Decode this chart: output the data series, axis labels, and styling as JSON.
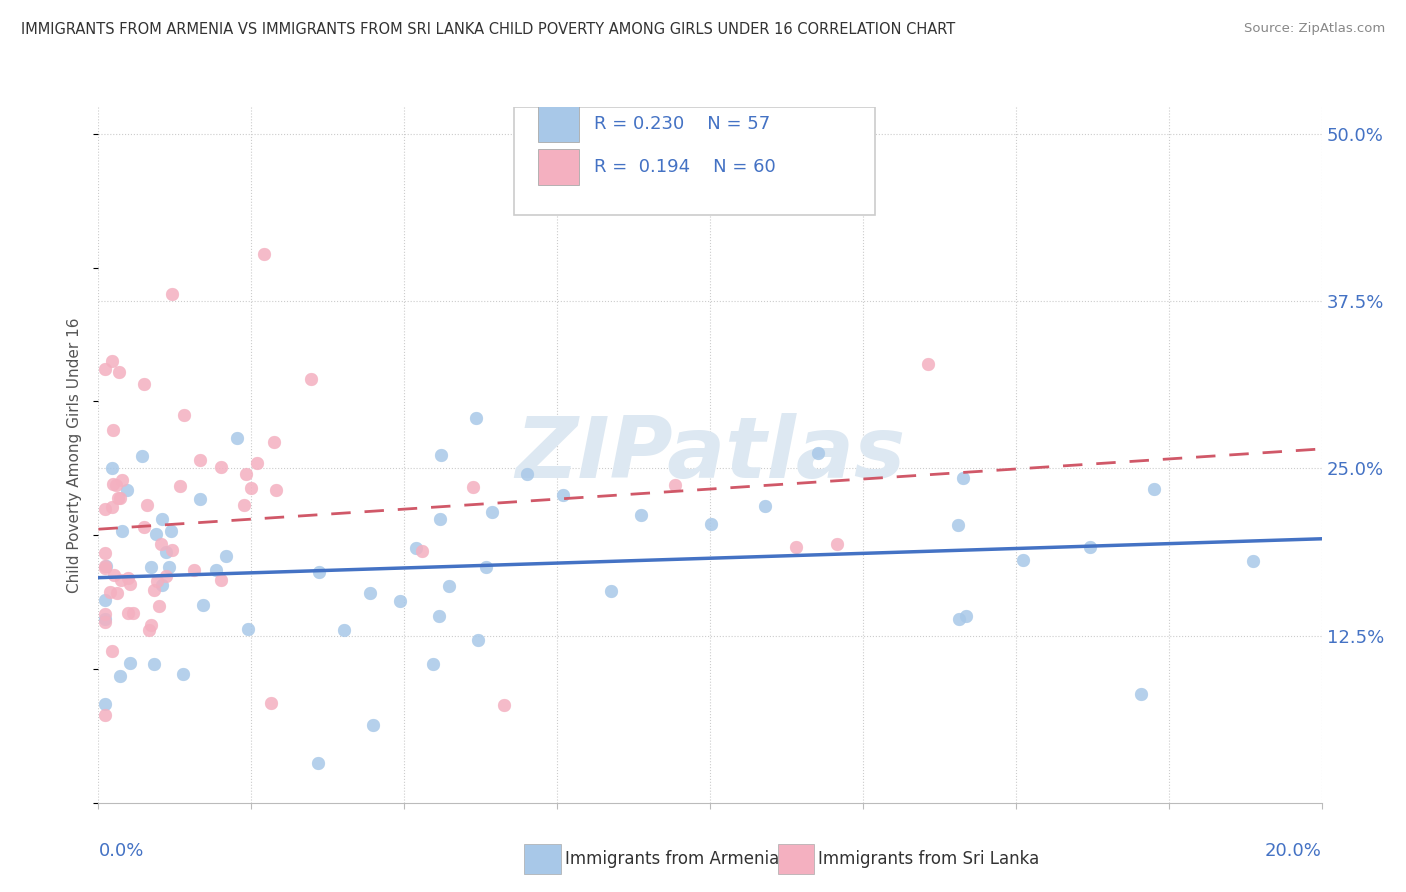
{
  "title": "IMMIGRANTS FROM ARMENIA VS IMMIGRANTS FROM SRI LANKA CHILD POVERTY AMONG GIRLS UNDER 16 CORRELATION CHART",
  "source": "Source: ZipAtlas.com",
  "ylabel": "Child Poverty Among Girls Under 16",
  "xlim": [
    0.0,
    0.2
  ],
  "ylim": [
    0.0,
    0.52
  ],
  "ytick_values": [
    0.125,
    0.25,
    0.375,
    0.5
  ],
  "ytick_labels": [
    "12.5%",
    "25.0%",
    "37.5%",
    "50.0%"
  ],
  "xtick_label_left": "0.0%",
  "xtick_label_right": "20.0%",
  "watermark": "ZIPatlas",
  "legend_armenia_r": "0.230",
  "legend_armenia_n": "57",
  "legend_srilanka_r": "0.194",
  "legend_srilanka_n": "60",
  "armenia_fill": "#a8c8e8",
  "srilanka_fill": "#f4b0c0",
  "armenia_line": "#4472c4",
  "srilanka_line": "#d05868",
  "grid_color": "#cccccc",
  "label_armenia": "Immigrants from Armenia",
  "label_srilanka": "Immigrants from Sri Lanka"
}
